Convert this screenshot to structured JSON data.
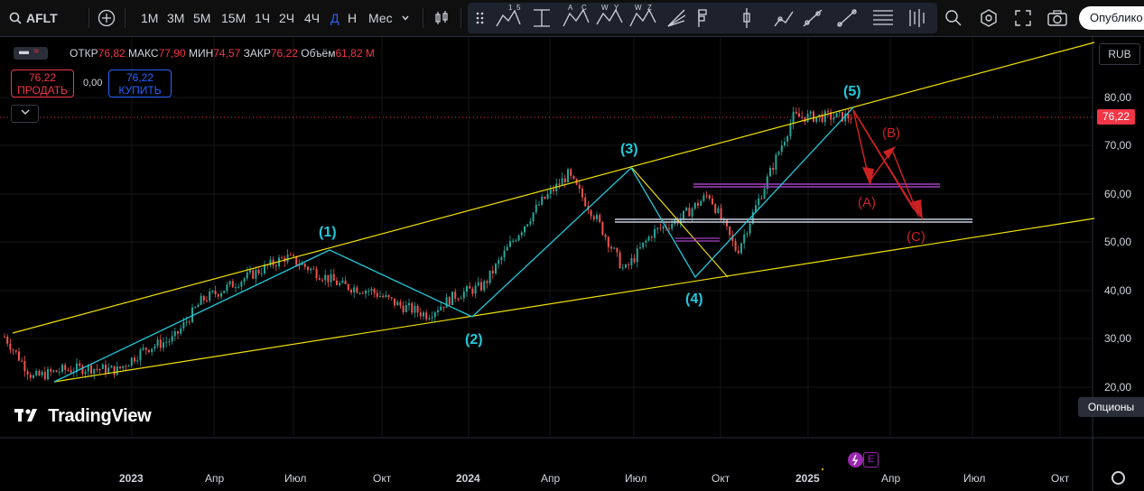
{
  "toolbar": {
    "symbol": "AFLT",
    "intervals": [
      "1М",
      "3М",
      "5М",
      "15М",
      "1Ч",
      "2Ч",
      "4Ч",
      "Д",
      "Н",
      "Мес"
    ],
    "active_interval": "Д",
    "publish_label": "Опублико"
  },
  "legend": {
    "open_label": "ОТКР",
    "open": "76,82",
    "high_label": "МАКС",
    "high": "77,90",
    "low_label": "МИН",
    "low": "74,57",
    "close_label": "ЗАКР",
    "close": "76,22",
    "volume_label": "Объём",
    "volume": "61,82 M"
  },
  "trade": {
    "sell_price": "76,22",
    "sell_label": "ПРОДАТЬ",
    "spread": "0,00",
    "buy_price": "76,22",
    "buy_label": "КУПИТЬ"
  },
  "price_scale": {
    "currency": "RUB",
    "current_price": "76,22",
    "ticks": [
      "80,00",
      "70,00",
      "60,00",
      "50,00",
      "40,00",
      "30,00",
      "20,00"
    ]
  },
  "time_scale": {
    "ticks": [
      "2023",
      "Апр",
      "Июл",
      "Окт",
      "2024",
      "Апр",
      "Июл",
      "Окт",
      "2025",
      "Апр",
      "Июл",
      "Окт"
    ]
  },
  "branding": {
    "logo_text": "TradingView"
  },
  "options_label": "Опционы",
  "wave_labels": {
    "w1": "(1)",
    "w2": "(2)",
    "w3": "(3)",
    "w4": "(4)",
    "w5": "(5)",
    "wa": "(A)",
    "wb": "(B)",
    "wc": "(C)"
  },
  "colors": {
    "background": "#000000",
    "up": "#26a69a",
    "down": "#ef5350",
    "channel": "#f0e000",
    "wave": "#22c8dc",
    "forecast": "#cc2222",
    "level_purple": "#a040c0",
    "level_white": "#c8d0e0",
    "accent": "#2962ff"
  },
  "chart_data": {
    "type": "candlestick",
    "symbol": "AFLT",
    "currency": "RUB",
    "ylim": [
      18,
      90
    ],
    "x_ticks": [
      "2023",
      "Апр",
      "Июл",
      "Окт",
      "2024",
      "Апр",
      "Июл",
      "Окт",
      "2025",
      "Апр",
      "Июл",
      "Окт"
    ],
    "close_path": [
      [
        "2022-10",
        30.5
      ],
      [
        "2022-11",
        22
      ],
      [
        "2022-12",
        23.5
      ],
      [
        "2023-01",
        24
      ],
      [
        "2023-02",
        23.5
      ],
      [
        "2023-03",
        28
      ],
      [
        "2023-04",
        30
      ],
      [
        "2023-05",
        38
      ],
      [
        "2023-06",
        41
      ],
      [
        "2023-07",
        44
      ],
      [
        "2023-08",
        47
      ],
      [
        "2023-09",
        44
      ],
      [
        "2023-10",
        41
      ],
      [
        "2023-11",
        40
      ],
      [
        "2023-12",
        37
      ],
      [
        "2024-01",
        35
      ],
      [
        "2024-02",
        39
      ],
      [
        "2024-03",
        41
      ],
      [
        "2024-04",
        50
      ],
      [
        "2024-05",
        58
      ],
      [
        "2024-06",
        64
      ],
      [
        "2024-07",
        55
      ],
      [
        "2024-08",
        44
      ],
      [
        "2024-09",
        52
      ],
      [
        "2024-10",
        55
      ],
      [
        "2024-11",
        60
      ],
      [
        "2024-12",
        48
      ],
      [
        "2025-01",
        62
      ],
      [
        "2025-02",
        76
      ]
    ],
    "wave_points": [
      {
        "label": "(1)",
        "value": 48.5
      },
      {
        "label": "(2)",
        "value": 34.5
      },
      {
        "label": "(3)",
        "value": 65.5
      },
      {
        "label": "(4)",
        "value": 43
      },
      {
        "label": "(5)",
        "value": 77.9
      }
    ],
    "levels": [
      62,
      54.5
    ]
  }
}
